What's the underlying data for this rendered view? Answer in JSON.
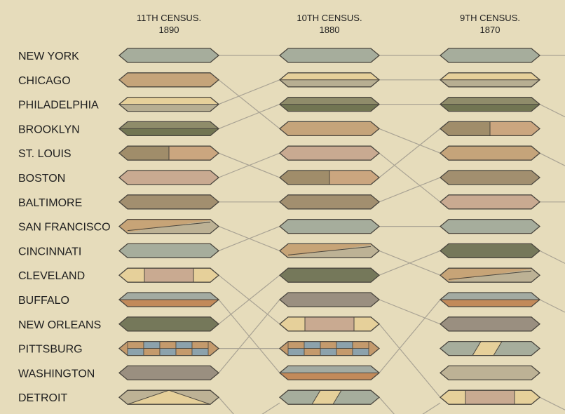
{
  "chart_data": {
    "type": "diagram",
    "censuses": [
      {
        "title": "11TH CENSUS.",
        "year": "1890"
      },
      {
        "title": "10TH CENSUS.",
        "year": "1880"
      },
      {
        "title": "9TH CENSUS.",
        "year": "1870"
      }
    ],
    "cities": [
      "NEW YORK",
      "CHICAGO",
      "PHILADELPHIA",
      "BROOKLYN",
      "ST. LOUIS",
      "BOSTON",
      "BALTIMORE",
      "SAN FRANCISCO",
      "CINCINNATI",
      "CLEVELAND",
      "BUFFALO",
      "NEW ORLEANS",
      "PITTSBURG",
      "WASHINGTON",
      "DETROIT"
    ],
    "columns": [
      {
        "census": "1890",
        "badges": [
          {
            "city": "NEW YORK",
            "pattern": "solid",
            "colors": [
              "#a6ad9c"
            ]
          },
          {
            "city": "CHICAGO",
            "pattern": "solid",
            "colors": [
              "#c5a47a"
            ]
          },
          {
            "city": "PHILADELPHIA",
            "pattern": "hsplit",
            "colors": [
              "#e6d09a",
              "#b7ae92"
            ]
          },
          {
            "city": "BROOKLYN",
            "pattern": "hsplit",
            "colors": [
              "#8f8c6a",
              "#717552"
            ]
          },
          {
            "city": "ST. LOUIS",
            "pattern": "vsplit",
            "colors": [
              "#a08d6a",
              "#cba67f"
            ]
          },
          {
            "city": "BOSTON",
            "pattern": "solid",
            "colors": [
              "#c9aa91"
            ]
          },
          {
            "city": "BALTIMORE",
            "pattern": "solid",
            "colors": [
              "#a28f6f"
            ]
          },
          {
            "city": "SAN FRANCISCO",
            "pattern": "diag",
            "colors": [
              "#c7a477",
              "#bdb295"
            ]
          },
          {
            "city": "CINCINNATI",
            "pattern": "solid",
            "colors": [
              "#a6ad9c"
            ]
          },
          {
            "city": "CLEVELAND",
            "pattern": "triband",
            "colors": [
              "#e6d09a",
              "#c9aa91"
            ]
          },
          {
            "city": "BUFFALO",
            "pattern": "hsplit",
            "colors": [
              "#a3aba2",
              "#c28a5a"
            ]
          },
          {
            "city": "NEW ORLEANS",
            "pattern": "solid",
            "colors": [
              "#75785a"
            ]
          },
          {
            "city": "PITTSBURG",
            "pattern": "checker",
            "colors": [
              "#c49a6c",
              "#8ca2ac"
            ]
          },
          {
            "city": "WASHINGTON",
            "pattern": "solid",
            "colors": [
              "#9a8f80"
            ]
          },
          {
            "city": "DETROIT",
            "pattern": "vee",
            "colors": [
              "#bdb295",
              "#e6d09a"
            ]
          }
        ]
      },
      {
        "census": "1880",
        "badges": [
          {
            "city": "NEW YORK",
            "pattern": "solid",
            "colors": [
              "#a6ad9c"
            ]
          },
          {
            "city": "PHILADELPHIA",
            "pattern": "hsplit",
            "colors": [
              "#e6d09a",
              "#b7ae92"
            ]
          },
          {
            "city": "BROOKLYN",
            "pattern": "hsplit",
            "colors": [
              "#8f8c6a",
              "#717552"
            ]
          },
          {
            "city": "CHICAGO",
            "pattern": "solid",
            "colors": [
              "#c5a47a"
            ]
          },
          {
            "city": "BOSTON",
            "pattern": "solid",
            "colors": [
              "#c9aa91"
            ]
          },
          {
            "city": "ST. LOUIS",
            "pattern": "vsplit",
            "colors": [
              "#a08d6a",
              "#cba67f"
            ]
          },
          {
            "city": "BALTIMORE",
            "pattern": "solid",
            "colors": [
              "#a28f6f"
            ]
          },
          {
            "city": "CINCINNATI",
            "pattern": "solid",
            "colors": [
              "#a6ad9c"
            ]
          },
          {
            "city": "SAN FRANCISCO",
            "pattern": "diag",
            "colors": [
              "#c7a477",
              "#bdb295"
            ]
          },
          {
            "city": "NEW ORLEANS",
            "pattern": "solid",
            "colors": [
              "#75785a"
            ]
          },
          {
            "city": "WASHINGTON",
            "pattern": "solid",
            "colors": [
              "#9a8f80"
            ]
          },
          {
            "city": "CLEVELAND",
            "pattern": "triband",
            "colors": [
              "#e6d09a",
              "#c9aa91"
            ]
          },
          {
            "city": "PITTSBURG",
            "pattern": "checker",
            "colors": [
              "#c49a6c",
              "#8ca2ac"
            ]
          },
          {
            "city": "BUFFALO",
            "pattern": "hsplit",
            "colors": [
              "#a3aba2",
              "#c28a5a"
            ]
          },
          {
            "city": "",
            "pattern": "slant",
            "colors": [
              "#a6ad9c",
              "#e6d09a"
            ]
          }
        ]
      },
      {
        "census": "1870",
        "badges": [
          {
            "city": "NEW YORK",
            "pattern": "solid",
            "colors": [
              "#a6ad9c"
            ]
          },
          {
            "city": "PHILADELPHIA",
            "pattern": "hsplit",
            "colors": [
              "#e6d09a",
              "#b7ae92"
            ]
          },
          {
            "city": "BROOKLYN",
            "pattern": "hsplit",
            "colors": [
              "#8f8c6a",
              "#717552"
            ]
          },
          {
            "city": "ST. LOUIS",
            "pattern": "vsplit",
            "colors": [
              "#a08d6a",
              "#cba67f"
            ]
          },
          {
            "city": "CHICAGO",
            "pattern": "solid",
            "colors": [
              "#c5a47a"
            ]
          },
          {
            "city": "BALTIMORE",
            "pattern": "solid",
            "colors": [
              "#a28f6f"
            ]
          },
          {
            "city": "BOSTON",
            "pattern": "solid",
            "colors": [
              "#c9aa91"
            ]
          },
          {
            "city": "CINCINNATI",
            "pattern": "solid",
            "colors": [
              "#a6ad9c"
            ]
          },
          {
            "city": "NEW ORLEANS",
            "pattern": "solid",
            "colors": [
              "#75785a"
            ]
          },
          {
            "city": "SAN FRANCISCO",
            "pattern": "diag",
            "colors": [
              "#c7a477",
              "#bdb295"
            ]
          },
          {
            "city": "BUFFALO",
            "pattern": "hsplit",
            "colors": [
              "#a3aba2",
              "#c28a5a"
            ]
          },
          {
            "city": "WASHINGTON",
            "pattern": "solid",
            "colors": [
              "#9a8f80"
            ]
          },
          {
            "city": "",
            "pattern": "slant",
            "colors": [
              "#a6ad9c",
              "#e6d09a"
            ]
          },
          {
            "city": "",
            "pattern": "solid",
            "colors": [
              "#bdb295"
            ]
          },
          {
            "city": "CLEVELAND",
            "pattern": "triband",
            "colors": [
              "#e6d09a",
              "#c9aa91"
            ]
          }
        ]
      }
    ],
    "connector_color": "#a9a394",
    "outline_color": "#4a463e",
    "background": "#e6dcbb"
  }
}
